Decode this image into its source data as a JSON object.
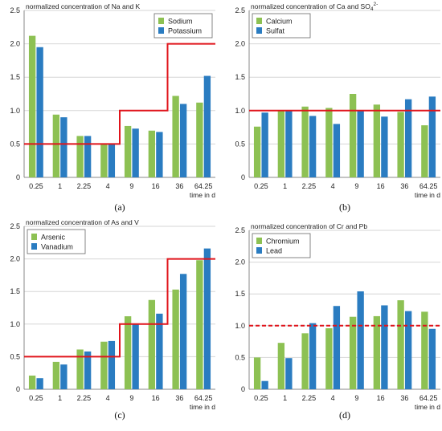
{
  "colors": {
    "series1": "#8dc153",
    "series2": "#2a7cc1",
    "reference": "#e0141b",
    "grid": "#d6d6d6",
    "axis": "#8a8a8a"
  },
  "chart_data": [
    {
      "type": "bar",
      "label": "(a)",
      "title": "normalized concentration of Na and K",
      "title_super": "",
      "xlabel": "time in d",
      "categories": [
        "0.25",
        "1",
        "2.25",
        "4",
        "9",
        "16",
        "36",
        "64.25"
      ],
      "ylim": [
        0,
        2.5
      ],
      "yticks": [
        "0",
        "0.5",
        "1.0",
        "1.5",
        "2.0",
        "2.5"
      ],
      "grid": "horizontal",
      "legend": "top-right",
      "series": [
        {
          "name": "Sodium",
          "values": [
            2.12,
            0.94,
            0.62,
            0.5,
            0.77,
            0.7,
            1.22,
            1.12
          ]
        },
        {
          "name": "Potassium",
          "values": [
            1.95,
            0.9,
            0.62,
            0.51,
            0.73,
            0.68,
            1.1,
            1.52
          ]
        }
      ],
      "reference_line": {
        "style": "solid-step",
        "steps": [
          {
            "from": "0.25",
            "to": "4",
            "value": 0.5
          },
          {
            "from": "9",
            "to": "16",
            "value": 1.0
          },
          {
            "from": "36",
            "to": "64.25",
            "value": 2.0
          }
        ]
      }
    },
    {
      "type": "bar",
      "label": "(b)",
      "title": "normalized concentration of Ca and SO",
      "title_super": "4",
      "title_super2": "2-",
      "xlabel": "time in d",
      "categories": [
        "0.25",
        "1",
        "2.25",
        "4",
        "9",
        "16",
        "36",
        "64.25"
      ],
      "ylim": [
        0,
        2.5
      ],
      "yticks": [
        "0",
        "0.5",
        "1.0",
        "1.5",
        "2.0",
        "2.5"
      ],
      "grid": "horizontal",
      "legend": "top-left",
      "series": [
        {
          "name": "Calcium",
          "values": [
            0.76,
            1.0,
            1.06,
            1.04,
            1.25,
            1.09,
            0.98,
            0.78
          ]
        },
        {
          "name": "Sulfat",
          "values": [
            0.97,
            1.0,
            0.92,
            0.8,
            1.0,
            0.91,
            1.17,
            1.21
          ]
        }
      ],
      "reference_line": {
        "style": "solid",
        "value": 1.0
      }
    },
    {
      "type": "bar",
      "label": "(c)",
      "title": "normalized concentration of As and V",
      "title_super": "",
      "xlabel": "time in d",
      "categories": [
        "0.25",
        "1",
        "2.25",
        "4",
        "9",
        "16",
        "36",
        "64.25"
      ],
      "ylim": [
        0,
        2.5
      ],
      "yticks": [
        "0",
        "0.5",
        "1.0",
        "1.5",
        "2.0",
        "2.5"
      ],
      "grid": "horizontal",
      "legend": "top-left",
      "series": [
        {
          "name": "Arsenic",
          "values": [
            0.21,
            0.42,
            0.61,
            0.73,
            1.12,
            1.37,
            1.53,
            1.98
          ]
        },
        {
          "name": "Vanadium",
          "values": [
            0.17,
            0.38,
            0.58,
            0.74,
            1.0,
            1.16,
            1.77,
            2.16
          ]
        }
      ],
      "reference_line": {
        "style": "solid-step",
        "steps": [
          {
            "from": "0.25",
            "to": "4",
            "value": 0.5
          },
          {
            "from": "9",
            "to": "16",
            "value": 1.0
          },
          {
            "from": "36",
            "to": "64.25",
            "value": 2.0
          }
        ]
      }
    },
    {
      "type": "bar",
      "label": "(d)",
      "title": "normalized concentration of Cr and Pb",
      "title_super": "",
      "xlabel": "time in d",
      "categories": [
        "0.25",
        "1",
        "2.25",
        "4",
        "9",
        "16",
        "36",
        "64.25"
      ],
      "ylim": [
        0,
        2.5
      ],
      "yticks": [
        "0",
        "0.5",
        "1.0",
        "1.5",
        "2.0",
        "2.5"
      ],
      "grid": "horizontal",
      "legend": "top-left",
      "series": [
        {
          "name": "Chromium",
          "values": [
            0.5,
            0.73,
            0.88,
            0.96,
            1.14,
            1.15,
            1.4,
            1.22
          ]
        },
        {
          "name": "Lead",
          "values": [
            0.13,
            0.49,
            1.04,
            1.31,
            1.54,
            1.32,
            1.23,
            0.95
          ]
        }
      ],
      "reference_line": {
        "style": "dashed",
        "value": 1.0
      }
    }
  ]
}
